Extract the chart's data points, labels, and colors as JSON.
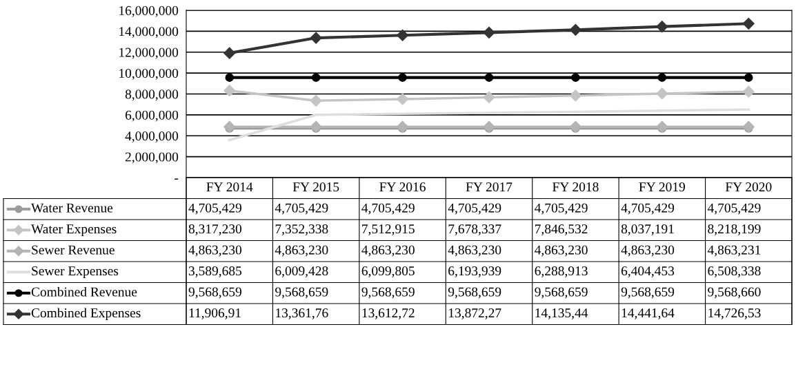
{
  "chart_data": {
    "type": "line",
    "categories": [
      "FY 2014",
      "FY 2015",
      "FY 2016",
      "FY 2017",
      "FY 2018",
      "FY 2019",
      "FY 2020"
    ],
    "ylim": [
      0,
      16000000
    ],
    "yticks": [
      {
        "value": 0,
        "label": "-"
      },
      {
        "value": 2000000,
        "label": "2,000,000"
      },
      {
        "value": 4000000,
        "label": "4,000,000"
      },
      {
        "value": 6000000,
        "label": "6,000,000"
      },
      {
        "value": 8000000,
        "label": "8,000,000"
      },
      {
        "value": 10000000,
        "label": "10,000,000"
      },
      {
        "value": 12000000,
        "label": "12,000,000"
      },
      {
        "value": 14000000,
        "label": "14,000,000"
      },
      {
        "value": 16000000,
        "label": "16,000,000"
      }
    ],
    "grid": "y",
    "legend": "bottom",
    "series": [
      {
        "name": "Water Revenue",
        "color": "#9a9a9a",
        "marker": "circle",
        "values": [
          4705429,
          4705429,
          4705429,
          4705429,
          4705429,
          4705429,
          4705429
        ],
        "value_labels": [
          "4,705,429",
          "4,705,429",
          "4,705,429",
          "4,705,429",
          "4,705,429",
          "4,705,429",
          "4,705,429"
        ]
      },
      {
        "name": "Water Expenses",
        "color": "#c4c4c4",
        "marker": "diamond",
        "values": [
          8317230,
          7352338,
          7512915,
          7678337,
          7846532,
          8037191,
          8218199
        ],
        "value_labels": [
          "8,317,230",
          "7,352,338",
          "7,512,915",
          "7,678,337",
          "7,846,532",
          "8,037,191",
          "8,218,199"
        ]
      },
      {
        "name": "Sewer Revenue",
        "color": "#b4b4b4",
        "marker": "diamond",
        "values": [
          4863230,
          4863230,
          4863230,
          4863230,
          4863230,
          4863230,
          4863231
        ],
        "value_labels": [
          "4,863,230",
          "4,863,230",
          "4,863,230",
          "4,863,230",
          "4,863,230",
          "4,863,230",
          "4,863,231"
        ]
      },
      {
        "name": "Sewer Expenses",
        "color": "#dedede",
        "marker": "none",
        "values": [
          3589685,
          6009428,
          6099805,
          6193939,
          6288913,
          6404453,
          6508338
        ],
        "value_labels": [
          "3,589,685",
          "6,009,428",
          "6,099,805",
          "6,193,939",
          "6,288,913",
          "6,404,453",
          "6,508,338"
        ]
      },
      {
        "name": "Combined Revenue",
        "color": "#000000",
        "marker": "circle",
        "values": [
          9568659,
          9568659,
          9568659,
          9568659,
          9568659,
          9568659,
          9568660
        ],
        "value_labels": [
          "9,568,659",
          "9,568,659",
          "9,568,659",
          "9,568,659",
          "9,568,659",
          "9,568,659",
          "9,568,660"
        ]
      },
      {
        "name": "Combined Expenses",
        "color": "#333333",
        "marker": "diamond",
        "values": [
          11906910,
          13361760,
          13612720,
          13872270,
          14135440,
          14441640,
          14726530
        ],
        "value_labels": [
          "11,906,91",
          "13,361,76",
          "13,612,72",
          "13,872,27",
          "14,135,44",
          "14,441,64",
          "14,726,53"
        ]
      }
    ]
  }
}
